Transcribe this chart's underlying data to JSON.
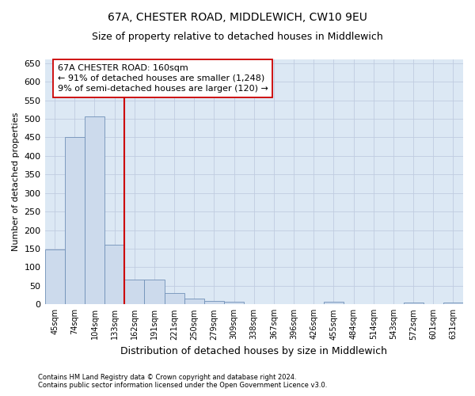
{
  "title": "67A, CHESTER ROAD, MIDDLEWICH, CW10 9EU",
  "subtitle": "Size of property relative to detached houses in Middlewich",
  "xlabel": "Distribution of detached houses by size in Middlewich",
  "ylabel": "Number of detached properties",
  "footer_line1": "Contains HM Land Registry data © Crown copyright and database right 2024.",
  "footer_line2": "Contains public sector information licensed under the Open Government Licence v3.0.",
  "categories": [
    "45sqm",
    "74sqm",
    "104sqm",
    "133sqm",
    "162sqm",
    "191sqm",
    "221sqm",
    "250sqm",
    "279sqm",
    "309sqm",
    "338sqm",
    "367sqm",
    "396sqm",
    "426sqm",
    "455sqm",
    "484sqm",
    "514sqm",
    "543sqm",
    "572sqm",
    "601sqm",
    "631sqm"
  ],
  "bar_values": [
    147,
    450,
    507,
    160,
    67,
    67,
    30,
    15,
    10,
    8,
    0,
    0,
    0,
    0,
    6,
    0,
    0,
    0,
    5,
    0,
    5
  ],
  "bar_color": "#ccdaec",
  "bar_edge_color": "#7090b8",
  "property_line_color": "#cc0000",
  "annotation_line1": "67A CHESTER ROAD: 160sqm",
  "annotation_line2": "← 91% of detached houses are smaller (1,248)",
  "annotation_line3": "9% of semi-detached houses are larger (120) →",
  "annotation_box_color": "#ffffff",
  "annotation_box_edge_color": "#cc0000",
  "ylim": [
    0,
    660
  ],
  "yticks": [
    0,
    50,
    100,
    150,
    200,
    250,
    300,
    350,
    400,
    450,
    500,
    550,
    600,
    650
  ],
  "grid_color": "#c0cce0",
  "bg_color": "#dce8f4",
  "title_fontsize": 10,
  "subtitle_fontsize": 9,
  "ylabel_fontsize": 8,
  "xlabel_fontsize": 9,
  "tick_fontsize": 7,
  "ytick_fontsize": 8,
  "footer_fontsize": 6,
  "ann_fontsize": 8
}
